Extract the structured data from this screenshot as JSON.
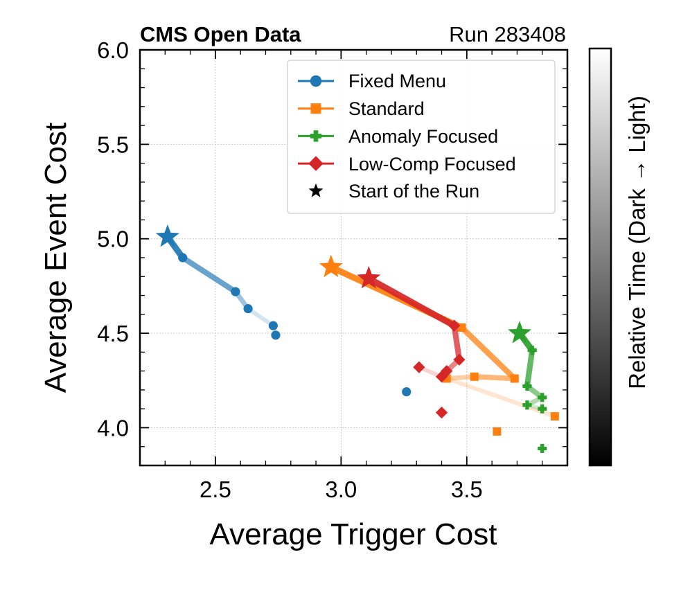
{
  "chart_data": {
    "type": "scatter",
    "header_left": "CMS Open Data",
    "header_right": "Run 283408",
    "xlabel": "Average Trigger Cost",
    "ylabel": "Average Event Cost",
    "xlim": [
      2.2,
      3.9
    ],
    "ylim": [
      3.8,
      6.0
    ],
    "xticks": [
      2.5,
      3.0,
      3.5
    ],
    "yticks": [
      4.0,
      4.5,
      5.0,
      5.5,
      6.0
    ],
    "xtick_labels": [
      "2.5",
      "3.0",
      "3.5"
    ],
    "ytick_labels": [
      "4.0",
      "4.5",
      "5.0",
      "5.5",
      "6.0"
    ],
    "grid": true,
    "legend_position": "top-right",
    "legend": [
      {
        "label": "Fixed Menu",
        "color": "#1f77b4",
        "marker": "circle"
      },
      {
        "label": "Standard",
        "color": "#ff7f0e",
        "marker": "square"
      },
      {
        "label": "Anomaly Focused",
        "color": "#2ca02c",
        "marker": "plus"
      },
      {
        "label": "Low-Comp Focused",
        "color": "#d62728",
        "marker": "diamond"
      },
      {
        "label": "Start of the Run",
        "color": "#000000",
        "marker": "star"
      }
    ],
    "colorbar": {
      "label": "Relative Time (Dark → Light)",
      "from_color": "#000000",
      "to_color": "#ffffff"
    },
    "series": [
      {
        "name": "Fixed Menu",
        "color": "#1f77b4",
        "marker": "circle",
        "x": [
          2.31,
          2.37,
          2.58,
          2.63,
          2.73,
          2.74,
          3.26
        ],
        "y": [
          5.01,
          4.9,
          4.72,
          4.63,
          4.54,
          4.49,
          4.19
        ],
        "connected_points": 5
      },
      {
        "name": "Standard",
        "color": "#ff7f0e",
        "marker": "square",
        "x": [
          2.96,
          3.48,
          3.69,
          3.53,
          3.42,
          3.85,
          3.62
        ],
        "y": [
          4.85,
          4.53,
          4.26,
          4.27,
          4.26,
          4.06,
          3.98
        ],
        "connected_points": 6
      },
      {
        "name": "Anomaly Focused",
        "color": "#2ca02c",
        "marker": "plus",
        "x": [
          3.71,
          3.76,
          3.74,
          3.8,
          3.74,
          3.8,
          3.8
        ],
        "y": [
          4.5,
          4.41,
          4.22,
          4.16,
          4.12,
          4.1,
          3.89
        ],
        "connected_points": 6
      },
      {
        "name": "Low-Comp Focused",
        "color": "#d62728",
        "marker": "diamond",
        "x": [
          3.11,
          3.45,
          3.47,
          3.42,
          3.4,
          3.31,
          3.4
        ],
        "y": [
          4.79,
          4.54,
          4.36,
          4.3,
          4.27,
          4.32,
          4.08
        ],
        "connected_points": 6
      }
    ]
  }
}
